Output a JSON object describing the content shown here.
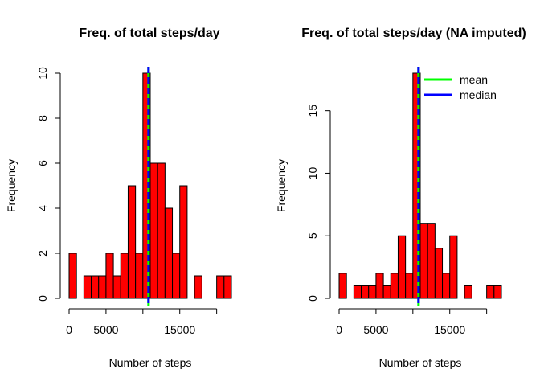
{
  "chart_data": [
    {
      "type": "bar",
      "title": "Freq. of total steps/day",
      "xlabel": "Number of steps",
      "ylabel": "Frequency",
      "bin_width": 1000,
      "xlim": [
        0,
        22000
      ],
      "ylim": [
        0,
        10
      ],
      "x_ticks": [
        0,
        5000,
        15000
      ],
      "y_ticks": [
        0,
        2,
        4,
        6,
        8,
        10
      ],
      "bin_starts": [
        0,
        1000,
        2000,
        3000,
        4000,
        5000,
        6000,
        7000,
        8000,
        9000,
        10000,
        11000,
        12000,
        13000,
        14000,
        15000,
        16000,
        17000,
        18000,
        19000,
        20000,
        21000
      ],
      "values": [
        2,
        0,
        1,
        1,
        1,
        2,
        1,
        2,
        5,
        2,
        10,
        6,
        6,
        4,
        2,
        5,
        0,
        1,
        0,
        0,
        1,
        1
      ],
      "bar_color": "#ff0000",
      "vlines": [
        {
          "name": "mean",
          "value": 10766,
          "color": "#00ff00",
          "style": "solid"
        },
        {
          "name": "median",
          "value": 10765,
          "color": "#0000ff",
          "style": "dashed"
        }
      ],
      "legend": null
    },
    {
      "type": "bar",
      "title": "Freq. of total steps/day (NA imputed)",
      "xlabel": "Number of steps",
      "ylabel": "Frequency",
      "bin_width": 1000,
      "xlim": [
        0,
        22000
      ],
      "ylim": [
        0,
        18
      ],
      "x_ticks": [
        0,
        5000,
        15000
      ],
      "y_ticks": [
        0,
        5,
        10,
        15
      ],
      "bin_starts": [
        0,
        1000,
        2000,
        3000,
        4000,
        5000,
        6000,
        7000,
        8000,
        9000,
        10000,
        11000,
        12000,
        13000,
        14000,
        15000,
        16000,
        17000,
        18000,
        19000,
        20000,
        21000
      ],
      "values": [
        2,
        0,
        1,
        1,
        1,
        2,
        1,
        2,
        5,
        2,
        18,
        6,
        6,
        4,
        2,
        5,
        0,
        1,
        0,
        0,
        1,
        1
      ],
      "bar_color": "#ff0000",
      "vlines": [
        {
          "name": "mean",
          "value": 10766,
          "color": "#00ff00",
          "style": "solid"
        },
        {
          "name": "median",
          "value": 10766,
          "color": "#0000ff",
          "style": "dashed"
        }
      ],
      "legend": {
        "placement": "top-right",
        "entries": [
          "mean",
          "median"
        ]
      }
    }
  ]
}
